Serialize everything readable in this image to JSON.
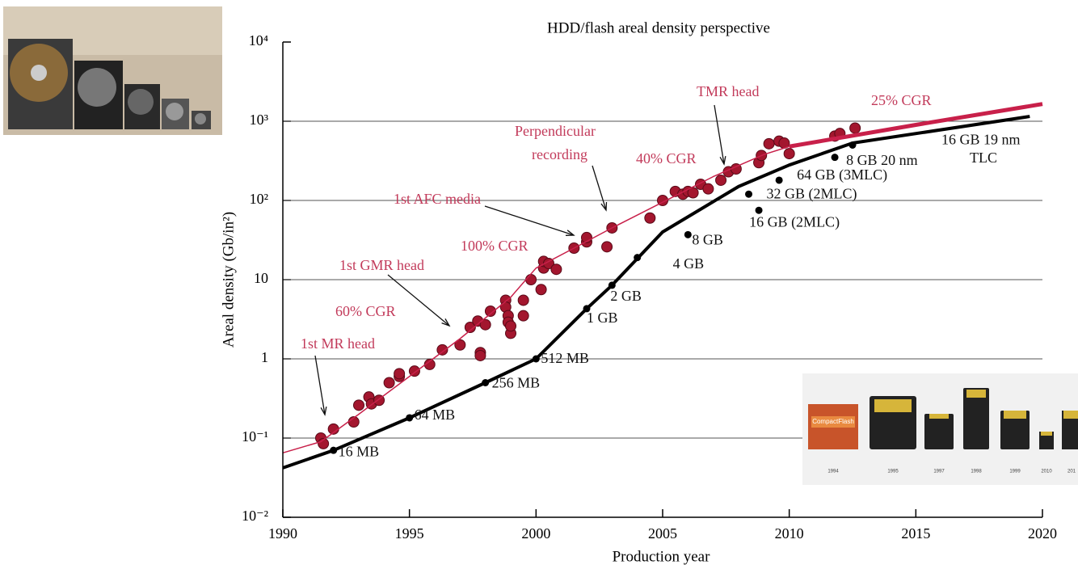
{
  "chart_data": {
    "type": "scatter",
    "title": "HDD/flash areal density perspective",
    "xlabel": "Production year",
    "ylabel": "Areal density (Gb/in²)",
    "xlim": [
      1990,
      2020
    ],
    "xticks": [
      1990,
      1995,
      2000,
      2005,
      2010,
      2015,
      2020
    ],
    "ylim": [
      0.01,
      10000
    ],
    "log_y": true,
    "grid": true,
    "yticks": [
      {
        "value": 0.01,
        "label": "10⁻²"
      },
      {
        "value": 0.1,
        "label": "10⁻¹"
      },
      1,
      10,
      {
        "value": 100,
        "label": "10²"
      },
      {
        "value": 1000,
        "label": "10³"
      },
      {
        "value": 10000,
        "label": "10⁴"
      }
    ],
    "series": [
      {
        "kind": "points",
        "color": "#a3162e",
        "x": [
          1991.5,
          1991.6,
          1992,
          1992.8,
          1993,
          1993.4,
          1993.5,
          1993.8,
          1994.2,
          1994.6,
          1994.6,
          1995.2,
          1995.8,
          1996.3,
          1997,
          1997.4,
          1997.7,
          1997.8,
          1997.8,
          1998,
          1998.2,
          1998.8,
          1998.8,
          1998.9,
          1998.9,
          1999,
          1999,
          1999.5,
          1999.5,
          1999.8,
          2000.2,
          2000.3,
          2000.3,
          2000.5,
          2000.8,
          2001.5,
          2002,
          2002,
          2002.8,
          2003,
          2004.5,
          2005,
          2005.5,
          2005.8,
          2006,
          2006.2,
          2006.5,
          2006.8,
          2007.3,
          2007.6,
          2007.9,
          2008.8,
          2008.9,
          2009.2,
          2009.6,
          2009.8,
          2010,
          2011.8,
          2012,
          2012.6
        ],
        "y": [
          0.1,
          0.085,
          0.13,
          0.16,
          0.26,
          0.33,
          0.27,
          0.3,
          0.5,
          0.6,
          0.65,
          0.7,
          0.85,
          1.3,
          1.5,
          2.5,
          3,
          1.2,
          1.1,
          2.7,
          4,
          5.5,
          4.5,
          3.5,
          2.9,
          2.1,
          2.6,
          3.5,
          5.5,
          10,
          7.5,
          14,
          17,
          16,
          13.5,
          25,
          30,
          34,
          26,
          45,
          60,
          100,
          130,
          120,
          130,
          125,
          160,
          140,
          180,
          230,
          250,
          300,
          370,
          520,
          560,
          530,
          390,
          650,
          700,
          820
        ]
      },
      {
        "kind": "line",
        "color": "#c8204a",
        "width": 1.5,
        "x": [
          1990,
          1991.5,
          1993,
          1995,
          1997,
          1999,
          2000,
          2001.5,
          2003,
          2005,
          2007,
          2009,
          2010
        ],
        "y": [
          0.065,
          0.09,
          0.2,
          0.6,
          1.8,
          6,
          14,
          25,
          45,
          95,
          200,
          380,
          480
        ]
      },
      {
        "kind": "line",
        "color": "#c8204a",
        "width": 5,
        "x": [
          2010,
          2015,
          2020
        ],
        "y": [
          480,
          900,
          1650
        ]
      },
      {
        "kind": "line",
        "color": "#000000",
        "width": 4,
        "x": [
          1990,
          1992,
          1995,
          1998,
          2000,
          2002,
          2003,
          2005,
          2008,
          2010,
          2012.5,
          2019.5
        ],
        "y": [
          0.042,
          0.07,
          0.18,
          0.5,
          1,
          4.3,
          8.5,
          40,
          150,
          280,
          530,
          1150
        ]
      },
      {
        "kind": "points",
        "color": "#000000",
        "x": [
          1992,
          1995,
          1998,
          2000,
          2002,
          2003,
          2004,
          2006,
          2008.8,
          2008.4,
          2009.6,
          2011.8,
          2012.5
        ],
        "y": [
          0.07,
          0.18,
          0.5,
          1,
          4.3,
          8.5,
          19,
          37,
          75,
          120,
          180,
          350,
          500
        ],
        "labels": [
          "16 MB",
          "64 MB",
          "256 MB",
          "512 MB",
          "1 GB",
          "2 GB",
          "4 GB",
          "8 GB",
          "16 GB (2MLC)",
          "32 GB (2MLC)",
          "64 GB (3MLC)",
          "8 GB 20 nm",
          "16 GB 19 nm"
        ]
      }
    ],
    "annotations": [
      "1st MR head",
      "60% CGR",
      "1st GMR head",
      "100% CGR",
      "1st AFC media",
      "Perpendicular",
      "recording",
      "40% CGR",
      "TMR head",
      "25% CGR",
      "TLC"
    ]
  },
  "photos": {
    "card_label": "CompactFlash",
    "card_years": [
      "1994",
      "1995",
      "1997",
      "1998",
      "1999",
      "2010",
      "201"
    ]
  }
}
